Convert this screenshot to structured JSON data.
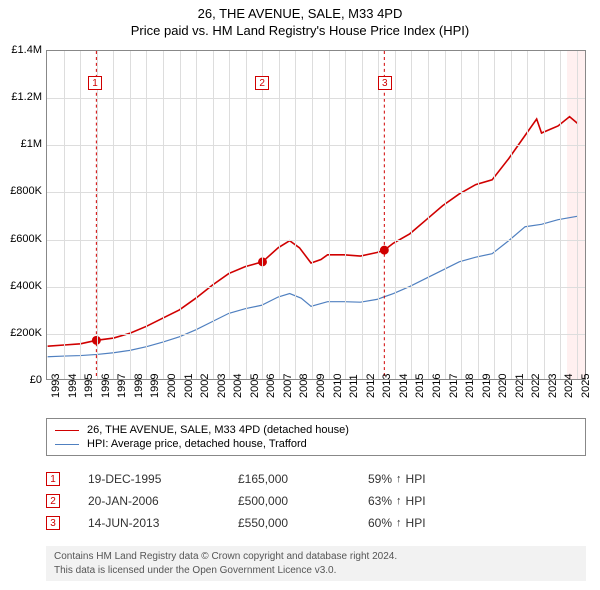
{
  "title": {
    "main": "26, THE AVENUE, SALE, M33 4PD",
    "sub": "Price paid vs. HM Land Registry's House Price Index (HPI)",
    "fontsize": 13,
    "color": "#000000"
  },
  "chart": {
    "type": "line",
    "background_color": "#ffffff",
    "recent_band_color": "#fff0f0",
    "border_color": "#888888",
    "grid_color": "#dddddd",
    "x": {
      "min": 1993,
      "max": 2025.6,
      "ticks": [
        1993,
        1994,
        1995,
        1996,
        1997,
        1998,
        1999,
        2000,
        2001,
        2002,
        2003,
        2004,
        2005,
        2006,
        2007,
        2008,
        2009,
        2010,
        2011,
        2012,
        2013,
        2014,
        2015,
        2016,
        2017,
        2018,
        2019,
        2020,
        2021,
        2022,
        2023,
        2024,
        2025
      ]
    },
    "y": {
      "min": 0,
      "max": 1400000,
      "ticks": [
        {
          "v": 0,
          "label": "£0"
        },
        {
          "v": 200000,
          "label": "£200K"
        },
        {
          "v": 400000,
          "label": "£400K"
        },
        {
          "v": 600000,
          "label": "£600K"
        },
        {
          "v": 800000,
          "label": "£800K"
        },
        {
          "v": 1000000,
          "label": "£1M"
        },
        {
          "v": 1200000,
          "label": "£1.2M"
        },
        {
          "v": 1400000,
          "label": "£1.4M"
        }
      ],
      "label_fontsize": 11
    },
    "series": [
      {
        "name": "26, THE AVENUE, SALE, M33 4PD (detached house)",
        "color": "#d00000",
        "line_width": 1.6,
        "data": [
          [
            1993,
            140000
          ],
          [
            1994,
            145000
          ],
          [
            1995,
            150000
          ],
          [
            1995.96,
            165000
          ],
          [
            1997,
            175000
          ],
          [
            1998,
            195000
          ],
          [
            1999,
            225000
          ],
          [
            2000,
            260000
          ],
          [
            2001,
            295000
          ],
          [
            2002,
            345000
          ],
          [
            2003,
            400000
          ],
          [
            2004,
            450000
          ],
          [
            2005,
            480000
          ],
          [
            2006.05,
            500000
          ],
          [
            2007,
            560000
          ],
          [
            2007.7,
            590000
          ],
          [
            2008.3,
            560000
          ],
          [
            2009,
            495000
          ],
          [
            2009.6,
            510000
          ],
          [
            2010,
            530000
          ],
          [
            2011,
            530000
          ],
          [
            2012,
            525000
          ],
          [
            2013,
            540000
          ],
          [
            2013.45,
            550000
          ],
          [
            2014,
            580000
          ],
          [
            2015,
            620000
          ],
          [
            2016,
            680000
          ],
          [
            2017,
            740000
          ],
          [
            2018,
            790000
          ],
          [
            2019,
            830000
          ],
          [
            2020,
            850000
          ],
          [
            2021,
            940000
          ],
          [
            2022,
            1040000
          ],
          [
            2022.7,
            1110000
          ],
          [
            2023,
            1050000
          ],
          [
            2024,
            1080000
          ],
          [
            2024.7,
            1120000
          ],
          [
            2025.2,
            1090000
          ]
        ]
      },
      {
        "name": "HPI: Average price, detached house, Trafford",
        "color": "#5080c0",
        "line_width": 1.2,
        "data": [
          [
            1993,
            95000
          ],
          [
            1994,
            98000
          ],
          [
            1995,
            100000
          ],
          [
            1996,
            105000
          ],
          [
            1997,
            112000
          ],
          [
            1998,
            122000
          ],
          [
            1999,
            138000
          ],
          [
            2000,
            158000
          ],
          [
            2001,
            180000
          ],
          [
            2002,
            210000
          ],
          [
            2003,
            245000
          ],
          [
            2004,
            280000
          ],
          [
            2005,
            300000
          ],
          [
            2006,
            315000
          ],
          [
            2007,
            350000
          ],
          [
            2007.7,
            365000
          ],
          [
            2008.4,
            345000
          ],
          [
            2009,
            310000
          ],
          [
            2010,
            330000
          ],
          [
            2011,
            330000
          ],
          [
            2012,
            328000
          ],
          [
            2013,
            340000
          ],
          [
            2014,
            365000
          ],
          [
            2015,
            395000
          ],
          [
            2016,
            430000
          ],
          [
            2017,
            465000
          ],
          [
            2018,
            500000
          ],
          [
            2019,
            520000
          ],
          [
            2020,
            535000
          ],
          [
            2021,
            590000
          ],
          [
            2022,
            650000
          ],
          [
            2023,
            660000
          ],
          [
            2024,
            680000
          ],
          [
            2025.2,
            695000
          ]
        ]
      }
    ],
    "sale_markers": [
      {
        "n": 1,
        "year": 1995.96,
        "price": 165000
      },
      {
        "n": 2,
        "year": 2006.05,
        "price": 500000
      },
      {
        "n": 3,
        "year": 2013.45,
        "price": 550000
      }
    ]
  },
  "legend": {
    "items": [
      {
        "color": "#d00000",
        "width": 1.6,
        "label": "26, THE AVENUE, SALE, M33 4PD (detached house)"
      },
      {
        "color": "#5080c0",
        "width": 1.2,
        "label": "HPI: Average price, detached house, Trafford"
      }
    ],
    "fontsize": 11
  },
  "sales_table": {
    "rows": [
      {
        "n": "1",
        "date": "19-DEC-1995",
        "price": "£165,000",
        "pct": "59%",
        "arrow": "↑",
        "suffix": "HPI"
      },
      {
        "n": "2",
        "date": "20-JAN-2006",
        "price": "£500,000",
        "pct": "63%",
        "arrow": "↑",
        "suffix": "HPI"
      },
      {
        "n": "3",
        "date": "14-JUN-2013",
        "price": "£550,000",
        "pct": "60%",
        "arrow": "↑",
        "suffix": "HPI"
      }
    ],
    "badge_color": "#d00000",
    "fontsize": 12
  },
  "footer": {
    "line1": "Contains HM Land Registry data © Crown copyright and database right 2024.",
    "line2": "This data is licensed under the Open Government Licence v3.0.",
    "background": "#f2f2f2",
    "fontsize": 10,
    "color": "#555555"
  }
}
